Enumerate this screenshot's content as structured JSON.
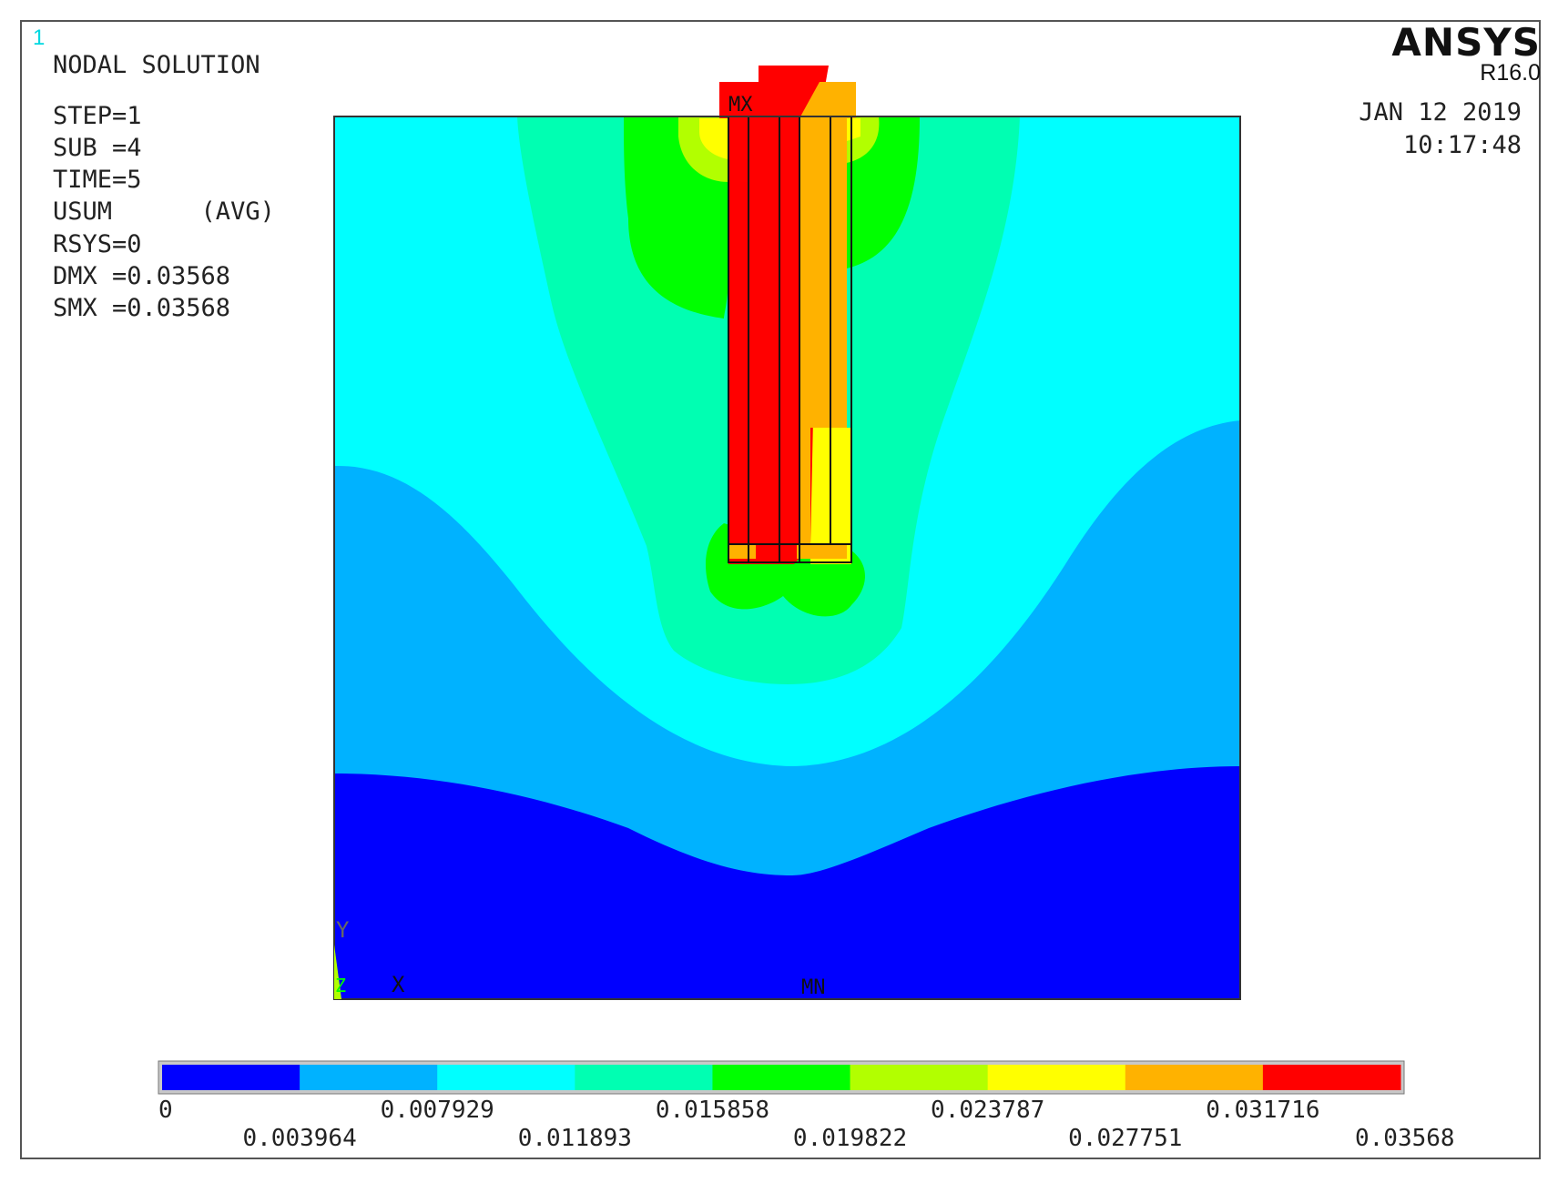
{
  "window_number": "1",
  "header": {
    "title": "NODAL SOLUTION",
    "info_lines": [
      "STEP=1",
      "SUB =4",
      "TIME=5",
      "USUM      (AVG)",
      "RSYS=0",
      "DMX =0.03568",
      "SMX =0.03568"
    ]
  },
  "brand": {
    "name": "ANSYS",
    "version": "R16.0"
  },
  "timestamp": {
    "date": "JAN 12 2019",
    "time": "10:17:48"
  },
  "markers": {
    "max": "MX",
    "min": "MN",
    "axis_y": "Y",
    "axis_x": "X",
    "axis_z": "Z"
  },
  "legend": {
    "colors": [
      "#0000ff",
      "#00b2ff",
      "#00ffff",
      "#00ffb2",
      "#00ff00",
      "#b2ff00",
      "#ffff00",
      "#ffb200",
      "#ff0000"
    ],
    "values": [
      "0",
      "0.003964",
      "0.007929",
      "0.011893",
      "0.015858",
      "0.019822",
      "0.023787",
      "0.027751",
      "0.031716",
      "0.03568"
    ]
  }
}
